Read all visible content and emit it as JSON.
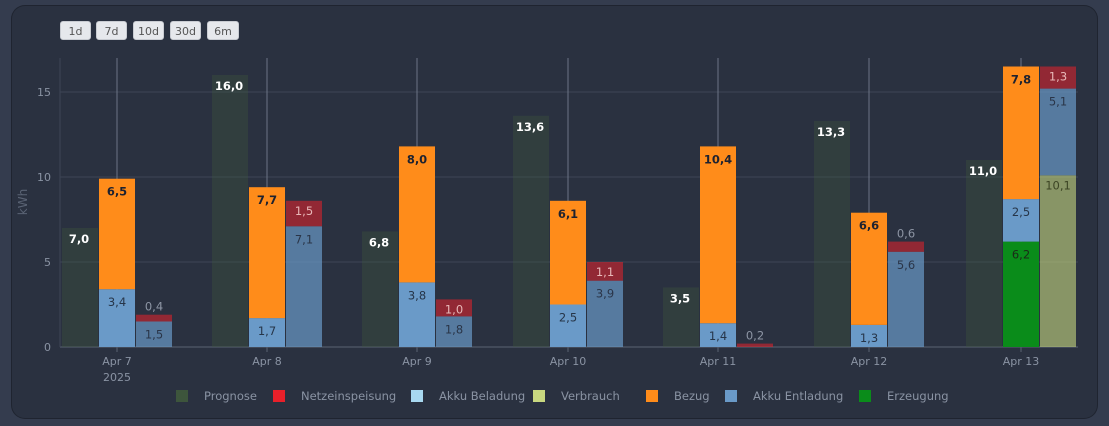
{
  "range_buttons": [
    "1d",
    "7d",
    "10d",
    "30d",
    "6m"
  ],
  "chart_data": {
    "type": "bar",
    "ylabel": "kWh",
    "ylim": [
      0,
      17
    ],
    "yticks": [
      0,
      5,
      10,
      15
    ],
    "grid": true,
    "legend_position": "bottom",
    "categories": [
      "Apr 7",
      "Apr 8",
      "Apr 9",
      "Apr 10",
      "Apr 11",
      "Apr 12",
      "Apr 13"
    ],
    "first_category_sublabel": "2025",
    "series": [
      {
        "name": "Prognose",
        "color": "#3f5a3c",
        "stack": "prognose",
        "values": [
          7.0,
          16.0,
          6.8,
          13.6,
          3.5,
          13.3,
          11.0
        ]
      },
      {
        "name": "Netzeinspeisung",
        "color": "#e8202a",
        "stack": "out",
        "values": [
          0.4,
          1.5,
          1.0,
          1.1,
          0.2,
          0.6,
          1.3
        ]
      },
      {
        "name": "Akku Beladung",
        "color": "#a8d8f0",
        "stack": "out",
        "values": [
          null,
          null,
          null,
          null,
          null,
          null,
          null
        ]
      },
      {
        "name": "Verbrauch",
        "color": "#c8d880",
        "stack": "out",
        "values": [
          null,
          null,
          null,
          null,
          null,
          null,
          10.1
        ]
      },
      {
        "name": "Bezug",
        "color": "#ff8c1a",
        "stack": "in",
        "values": [
          6.5,
          7.7,
          8.0,
          6.1,
          10.4,
          6.6,
          7.8
        ]
      },
      {
        "name": "Akku Entladung",
        "color": "#6a9ac8",
        "stack": "in",
        "values": [
          3.4,
          1.7,
          3.8,
          2.5,
          1.4,
          1.3,
          2.5
        ]
      },
      {
        "name": "Erzeugung",
        "color": "#0a8c1a",
        "stack": "in",
        "values": [
          null,
          null,
          null,
          null,
          null,
          null,
          6.2
        ]
      }
    ],
    "out_column_base": {
      "name": "Akku Entladung",
      "values": [
        1.5,
        7.1,
        1.8,
        3.9,
        null,
        5.6,
        5.1
      ]
    }
  }
}
